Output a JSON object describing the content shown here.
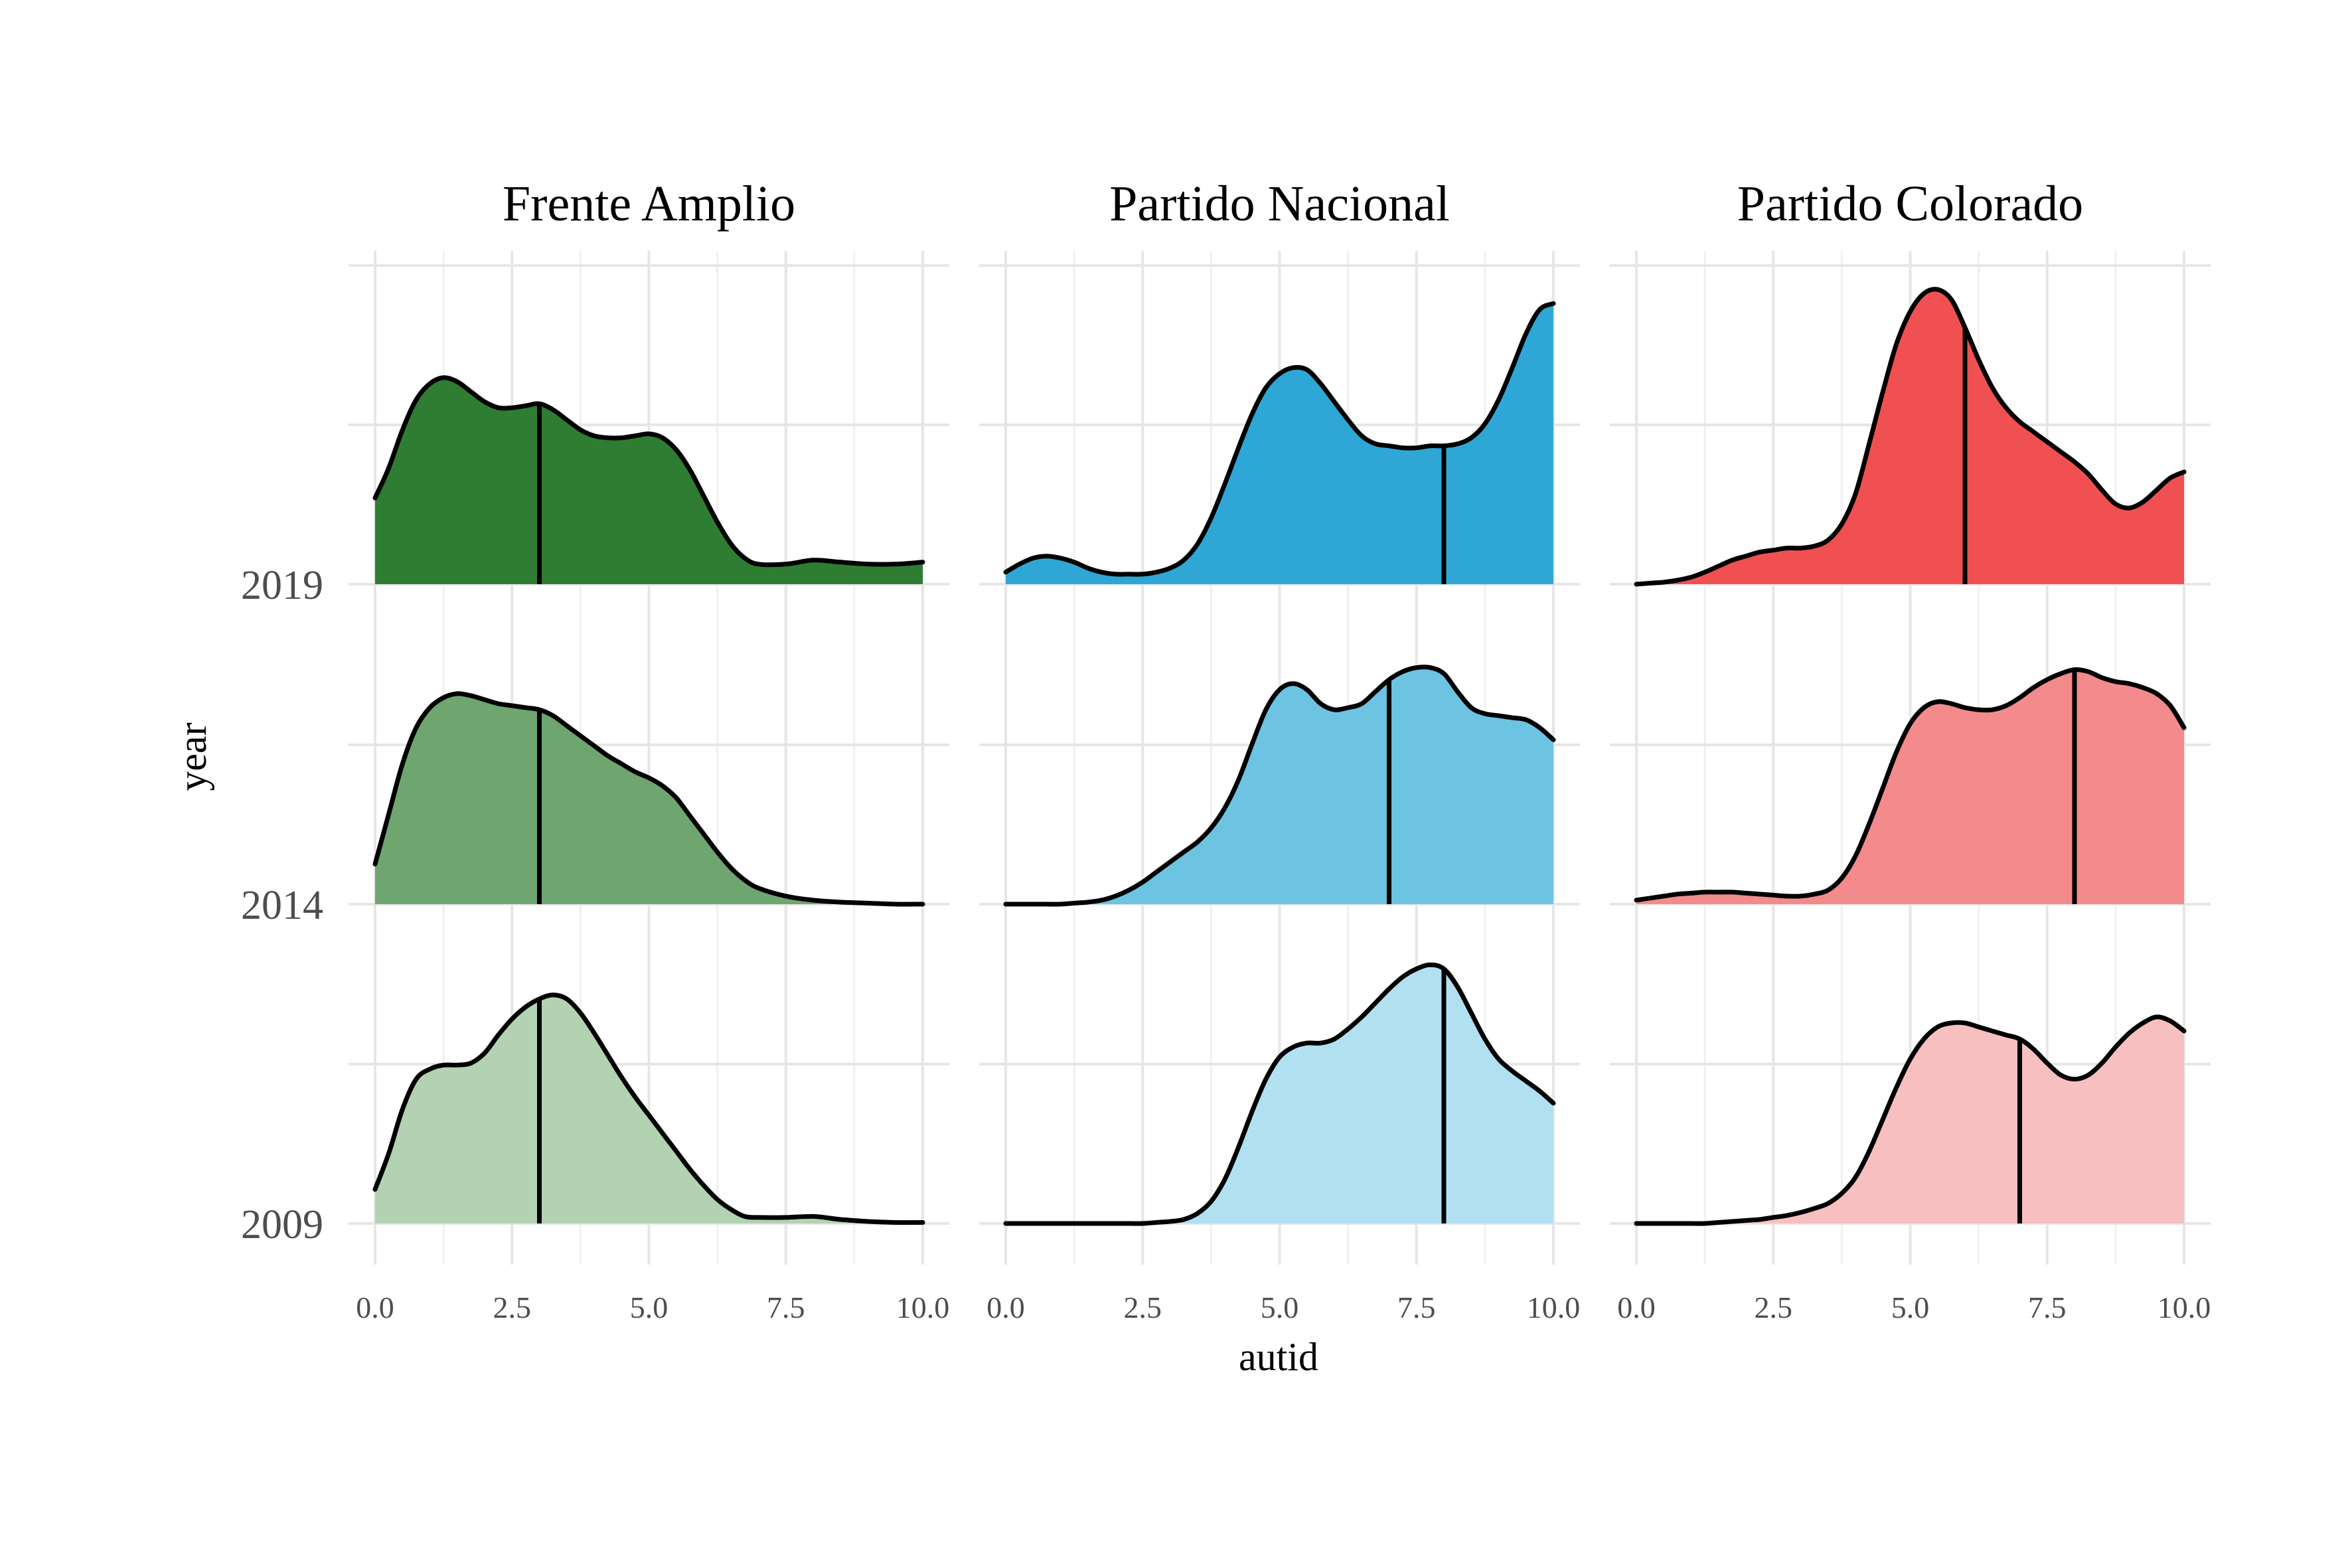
{
  "chart_data": {
    "type": "ridgeline",
    "xlabel": "autid",
    "ylabel": "year",
    "xlim": [
      0,
      10
    ],
    "x_ticks": [
      "0.0",
      "2.5",
      "5.0",
      "7.5",
      "10.0"
    ],
    "years": [
      "2019",
      "2014",
      "2009"
    ],
    "grid": true,
    "panels": [
      {
        "name": "Frente Amplio",
        "colors": {
          "2019": "#2e7d32",
          "2014": "#6fa56f",
          "2009": "#b2d2b2"
        },
        "ridges": [
          {
            "year": "2019",
            "median": 3.0,
            "x": [
              0,
              0.25,
              0.5,
              0.75,
              1,
              1.25,
              1.5,
              1.75,
              2,
              2.25,
              2.5,
              2.75,
              3,
              3.25,
              3.5,
              3.75,
              4,
              4.25,
              4.5,
              4.75,
              5,
              5.25,
              5.5,
              5.75,
              6,
              6.25,
              6.5,
              6.75,
              7,
              7.5,
              8,
              8.5,
              9,
              9.5,
              10
            ],
            "y": [
              0.43,
              0.58,
              0.77,
              0.92,
              1.0,
              1.03,
              1.01,
              0.96,
              0.91,
              0.88,
              0.88,
              0.89,
              0.9,
              0.87,
              0.82,
              0.77,
              0.74,
              0.73,
              0.73,
              0.74,
              0.75,
              0.73,
              0.67,
              0.57,
              0.44,
              0.31,
              0.2,
              0.13,
              0.1,
              0.1,
              0.12,
              0.11,
              0.1,
              0.1,
              0.11
            ]
          },
          {
            "year": "2014",
            "median": 3.0,
            "x": [
              0,
              0.25,
              0.5,
              0.75,
              1,
              1.25,
              1.5,
              1.75,
              2,
              2.25,
              2.5,
              2.75,
              3,
              3.25,
              3.5,
              3.75,
              4,
              4.25,
              4.5,
              4.75,
              5,
              5.25,
              5.5,
              5.75,
              6,
              6.25,
              6.5,
              6.75,
              7,
              7.5,
              8,
              8.5,
              9,
              9.5,
              10
            ],
            "y": [
              0.2,
              0.45,
              0.7,
              0.88,
              0.98,
              1.03,
              1.05,
              1.04,
              1.02,
              1.0,
              0.99,
              0.98,
              0.97,
              0.94,
              0.89,
              0.84,
              0.79,
              0.74,
              0.7,
              0.66,
              0.63,
              0.59,
              0.53,
              0.44,
              0.35,
              0.26,
              0.18,
              0.12,
              0.08,
              0.04,
              0.02,
              0.01,
              0.005,
              0.0,
              0.0
            ]
          },
          {
            "year": "2009",
            "median": 3.0,
            "x": [
              0,
              0.25,
              0.5,
              0.75,
              1,
              1.25,
              1.5,
              1.75,
              2,
              2.25,
              2.5,
              2.75,
              3,
              3.25,
              3.5,
              3.75,
              4,
              4.25,
              4.5,
              4.75,
              5,
              5.25,
              5.5,
              5.75,
              6,
              6.25,
              6.5,
              6.75,
              7,
              7.5,
              8,
              8.5,
              9,
              9.5,
              10
            ],
            "y": [
              0.17,
              0.35,
              0.57,
              0.72,
              0.77,
              0.79,
              0.79,
              0.8,
              0.85,
              0.94,
              1.02,
              1.08,
              1.12,
              1.14,
              1.12,
              1.05,
              0.95,
              0.84,
              0.73,
              0.63,
              0.54,
              0.45,
              0.36,
              0.27,
              0.19,
              0.12,
              0.07,
              0.035,
              0.03,
              0.03,
              0.035,
              0.02,
              0.01,
              0.005,
              0.005
            ]
          }
        ]
      },
      {
        "name": "Partido Nacional",
        "colors": {
          "2019": "#2ea7d6",
          "2014": "#6cc4e2",
          "2009": "#b1e0f0"
        },
        "ridges": [
          {
            "year": "2019",
            "median": 8.0,
            "x": [
              0,
              0.25,
              0.5,
              0.75,
              1,
              1.25,
              1.5,
              1.75,
              2,
              2.25,
              2.5,
              2.75,
              3,
              3.25,
              3.5,
              3.75,
              4,
              4.25,
              4.5,
              4.75,
              5,
              5.25,
              5.5,
              5.75,
              6,
              6.25,
              6.5,
              6.75,
              7,
              7.25,
              7.5,
              7.75,
              8,
              8.25,
              8.5,
              8.75,
              9,
              9.25,
              9.5,
              9.75,
              10
            ],
            "y": [
              0.06,
              0.1,
              0.13,
              0.14,
              0.13,
              0.11,
              0.08,
              0.06,
              0.05,
              0.05,
              0.05,
              0.06,
              0.08,
              0.12,
              0.2,
              0.33,
              0.5,
              0.68,
              0.85,
              0.98,
              1.05,
              1.08,
              1.07,
              1.0,
              0.91,
              0.82,
              0.74,
              0.7,
              0.69,
              0.68,
              0.68,
              0.69,
              0.69,
              0.7,
              0.73,
              0.8,
              0.92,
              1.08,
              1.25,
              1.37,
              1.4
            ]
          },
          {
            "year": "2014",
            "median": 7.0,
            "x": [
              0,
              0.25,
              0.5,
              0.75,
              1,
              1.25,
              1.5,
              1.75,
              2,
              2.25,
              2.5,
              2.75,
              3,
              3.25,
              3.5,
              3.75,
              4,
              4.25,
              4.5,
              4.75,
              5,
              5.25,
              5.5,
              5.75,
              6,
              6.25,
              6.5,
              6.75,
              7,
              7.25,
              7.5,
              7.75,
              8,
              8.25,
              8.5,
              8.75,
              9,
              9.25,
              9.5,
              9.75,
              10
            ],
            "y": [
              0.0,
              0.0,
              0.0,
              0.0,
              0.0,
              0.005,
              0.01,
              0.02,
              0.04,
              0.07,
              0.11,
              0.16,
              0.21,
              0.26,
              0.31,
              0.38,
              0.48,
              0.62,
              0.8,
              0.97,
              1.07,
              1.1,
              1.07,
              1.0,
              0.97,
              0.98,
              1.0,
              1.06,
              1.12,
              1.16,
              1.18,
              1.18,
              1.15,
              1.06,
              0.98,
              0.95,
              0.94,
              0.93,
              0.92,
              0.88,
              0.82
            ]
          },
          {
            "year": "2009",
            "median": 8.0,
            "x": [
              0,
              0.25,
              0.5,
              0.75,
              1,
              1.25,
              1.5,
              1.75,
              2,
              2.25,
              2.5,
              2.75,
              3,
              3.25,
              3.5,
              3.75,
              4,
              4.25,
              4.5,
              4.75,
              5,
              5.25,
              5.5,
              5.75,
              6,
              6.25,
              6.5,
              6.75,
              7,
              7.25,
              7.5,
              7.75,
              8,
              8.25,
              8.5,
              8.75,
              9,
              9.25,
              9.5,
              9.75,
              10
            ],
            "y": [
              0.0,
              0.0,
              0.0,
              0.0,
              0.0,
              0.0,
              0.0,
              0.0,
              0.0,
              0.0,
              0.0,
              0.005,
              0.01,
              0.02,
              0.05,
              0.11,
              0.22,
              0.38,
              0.56,
              0.72,
              0.83,
              0.88,
              0.9,
              0.9,
              0.92,
              0.97,
              1.03,
              1.1,
              1.17,
              1.23,
              1.27,
              1.29,
              1.27,
              1.18,
              1.05,
              0.92,
              0.82,
              0.76,
              0.71,
              0.66,
              0.6
            ]
          }
        ]
      },
      {
        "name": "Partido Colorado",
        "colors": {
          "2019": "#f05052",
          "2014": "#f38a8b",
          "2009": "#f7bfbf"
        },
        "ridges": [
          {
            "year": "2019",
            "median": 6.0,
            "x": [
              0,
              0.25,
              0.5,
              0.75,
              1,
              1.25,
              1.5,
              1.75,
              2,
              2.25,
              2.5,
              2.75,
              3,
              3.25,
              3.5,
              3.75,
              4,
              4.25,
              4.5,
              4.75,
              5,
              5.25,
              5.5,
              5.75,
              6,
              6.25,
              6.5,
              6.75,
              7,
              7.25,
              7.5,
              7.75,
              8,
              8.25,
              8.5,
              8.75,
              9,
              9.25,
              9.5,
              9.75,
              10
            ],
            "y": [
              0.0,
              0.005,
              0.01,
              0.02,
              0.035,
              0.06,
              0.09,
              0.12,
              0.14,
              0.16,
              0.17,
              0.18,
              0.18,
              0.19,
              0.22,
              0.3,
              0.45,
              0.7,
              0.96,
              1.2,
              1.36,
              1.45,
              1.47,
              1.42,
              1.28,
              1.12,
              0.98,
              0.88,
              0.81,
              0.76,
              0.71,
              0.66,
              0.61,
              0.55,
              0.47,
              0.4,
              0.38,
              0.41,
              0.47,
              0.53,
              0.56
            ]
          },
          {
            "year": "2014",
            "median": 8.0,
            "x": [
              0,
              0.25,
              0.5,
              0.75,
              1,
              1.25,
              1.5,
              1.75,
              2,
              2.25,
              2.5,
              2.75,
              3,
              3.25,
              3.5,
              3.75,
              4,
              4.25,
              4.5,
              4.75,
              5,
              5.25,
              5.5,
              5.75,
              6,
              6.25,
              6.5,
              6.75,
              7,
              7.25,
              7.5,
              7.75,
              8,
              8.25,
              8.5,
              8.75,
              9,
              9.25,
              9.5,
              9.75,
              10
            ],
            "y": [
              0.02,
              0.03,
              0.04,
              0.05,
              0.055,
              0.06,
              0.06,
              0.06,
              0.055,
              0.05,
              0.045,
              0.04,
              0.04,
              0.05,
              0.07,
              0.13,
              0.24,
              0.4,
              0.58,
              0.76,
              0.9,
              0.98,
              1.01,
              1.0,
              0.98,
              0.97,
              0.97,
              0.99,
              1.03,
              1.08,
              1.12,
              1.15,
              1.17,
              1.16,
              1.13,
              1.11,
              1.1,
              1.08,
              1.05,
              0.99,
              0.88
            ]
          },
          {
            "year": "2009",
            "median": 7.0,
            "x": [
              0,
              0.25,
              0.5,
              0.75,
              1,
              1.25,
              1.5,
              1.75,
              2,
              2.25,
              2.5,
              2.75,
              3,
              3.25,
              3.5,
              3.75,
              4,
              4.25,
              4.5,
              4.75,
              5,
              5.25,
              5.5,
              5.75,
              6,
              6.25,
              6.5,
              6.75,
              7,
              7.25,
              7.5,
              7.75,
              8,
              8.25,
              8.5,
              8.75,
              9,
              9.25,
              9.5,
              9.75,
              10
            ],
            "y": [
              0.0,
              0.0,
              0.0,
              0.0,
              0.0,
              0.0,
              0.005,
              0.01,
              0.015,
              0.02,
              0.03,
              0.04,
              0.055,
              0.075,
              0.1,
              0.15,
              0.23,
              0.36,
              0.52,
              0.68,
              0.82,
              0.92,
              0.98,
              1.0,
              1.0,
              0.98,
              0.96,
              0.94,
              0.92,
              0.87,
              0.8,
              0.74,
              0.72,
              0.74,
              0.8,
              0.88,
              0.95,
              1.0,
              1.03,
              1.01,
              0.96
            ]
          }
        ]
      }
    ]
  }
}
